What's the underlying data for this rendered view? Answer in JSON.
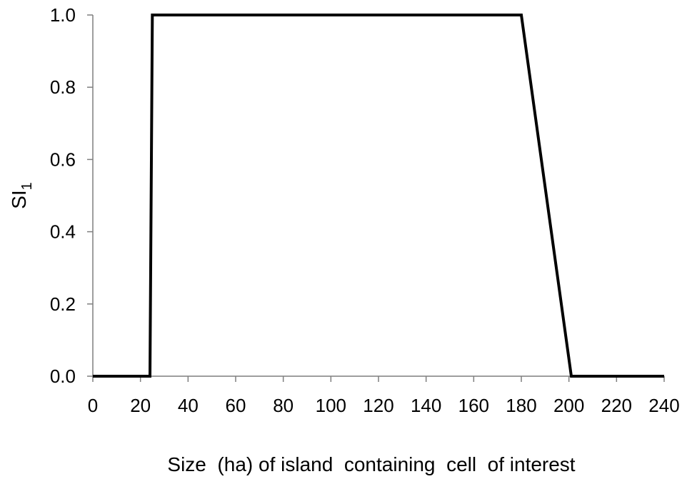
{
  "chart_data": {
    "type": "line",
    "xlabel": "Size  (ha) of island  containing  cell  of interest",
    "ylabel": {
      "base": "SI",
      "subscript": "1"
    },
    "xlim": [
      0,
      240
    ],
    "ylim": [
      0,
      1
    ],
    "x_ticks": [
      "0",
      "20",
      "40",
      "60",
      "80",
      "100",
      "120",
      "140",
      "160",
      "180",
      "200",
      "220",
      "240"
    ],
    "y_ticks": [
      "0.0",
      "0.2",
      "0.4",
      "0.6",
      "0.8",
      "1.0"
    ],
    "grid": false,
    "legend": "none",
    "series": [
      {
        "x": [
          0,
          24,
          25,
          180,
          201,
          240
        ],
        "y": [
          0,
          0,
          1,
          1,
          0,
          0
        ]
      }
    ]
  }
}
